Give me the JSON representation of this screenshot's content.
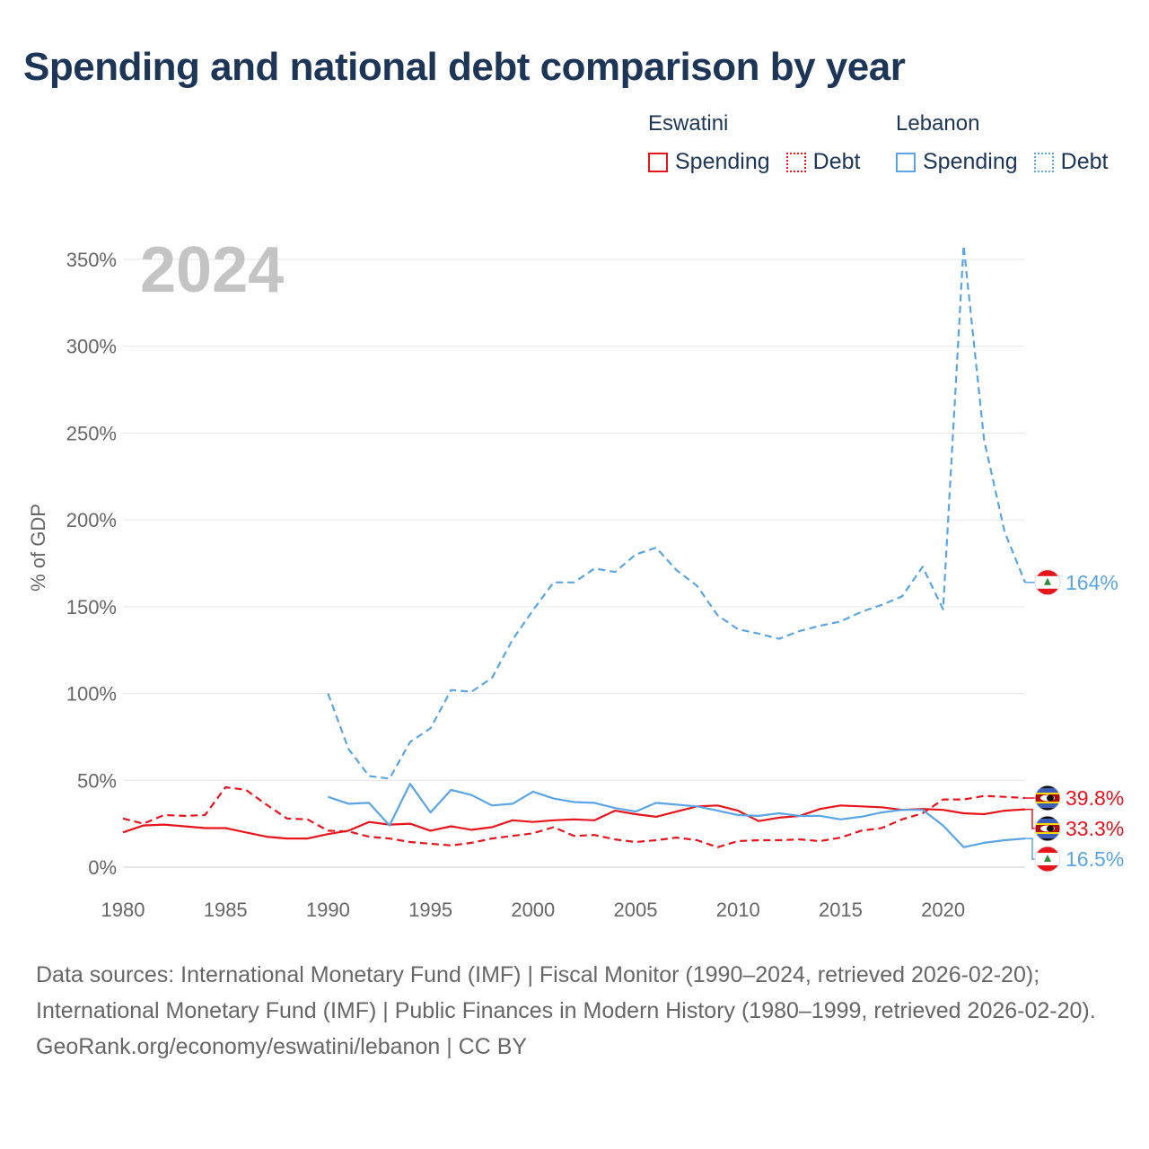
{
  "title": "Spending and national debt comparison by year",
  "legend": {
    "groups": [
      {
        "country": "Eswatini",
        "color": "#e8141c",
        "items": [
          {
            "label": "Spending",
            "style": "solid"
          },
          {
            "label": "Debt",
            "style": "dotted"
          }
        ]
      },
      {
        "country": "Lebanon",
        "color": "#5aa5e6",
        "items": [
          {
            "label": "Spending",
            "style": "solid"
          },
          {
            "label": "Debt",
            "style": "dotted"
          }
        ]
      }
    ]
  },
  "year_label": "2024",
  "footer": {
    "sources": "Data sources: International Monetary Fund (IMF) | Fiscal Monitor (1990–2024, retrieved 2026-02-20); International Monetary Fund (IMF) | Public Finances in Modern History (1980–1999, retrieved 2026-02-20).",
    "credit": "GeoRank.org/economy/eswatini/lebanon | CC BY"
  },
  "chart_data": {
    "type": "line",
    "title": "Spending and national debt comparison by year",
    "xlabel": "",
    "ylabel": "% of GDP",
    "xlim": [
      1980,
      2024
    ],
    "ylim": [
      0,
      350
    ],
    "x_ticks": [
      1980,
      1985,
      1990,
      1995,
      2000,
      2005,
      2010,
      2015,
      2020
    ],
    "x_tick_labels": [
      "1980",
      "1985",
      "1990",
      "1995",
      "2000",
      "2005",
      "2010",
      "2015",
      "2020"
    ],
    "y_ticks": [
      0,
      50,
      100,
      150,
      200,
      250,
      300,
      350
    ],
    "y_tick_labels": [
      "0%",
      "50%",
      "100%",
      "150%",
      "200%",
      "250%",
      "300%",
      "350%"
    ],
    "grid": true,
    "series": [
      {
        "name": "Eswatini Spending",
        "country": "Eswatini",
        "metric": "Spending",
        "color": "#e8141c",
        "dash": "solid",
        "start_year": 1980,
        "values": [
          20,
          24,
          24.5,
          23.5,
          22.5,
          22.5,
          20,
          17.5,
          16.5,
          16.5,
          19,
          21,
          26,
          24.5,
          25,
          21,
          23.5,
          21.5,
          23,
          27,
          26,
          27,
          27.5,
          27,
          32.5,
          30.5,
          29,
          32,
          35,
          35.5,
          32.5,
          26.5,
          28.5,
          29.5,
          33.5,
          35.5,
          35,
          34.5,
          33,
          33.5,
          33,
          31,
          30.5,
          32.5,
          33.3
        ],
        "end_label": "33.3%"
      },
      {
        "name": "Eswatini Debt",
        "country": "Eswatini",
        "metric": "Debt",
        "color": "#e8141c",
        "dash": "dashed",
        "start_year": 1980,
        "values": [
          28,
          25,
          30,
          29.5,
          30,
          46,
          44.5,
          36,
          28,
          27.5,
          21,
          20.5,
          17.5,
          16.5,
          14.5,
          13.5,
          12.5,
          14,
          16.5,
          18,
          19.5,
          23,
          18,
          18.5,
          16,
          14.5,
          15.5,
          17,
          15.5,
          11.5,
          15,
          15.5,
          15.5,
          16,
          15,
          17,
          21,
          22.5,
          27.5,
          31,
          39,
          39,
          41,
          40.5,
          39.8
        ],
        "end_label": "39.8%"
      },
      {
        "name": "Lebanon Spending",
        "country": "Lebanon",
        "metric": "Spending",
        "color": "#5aa5e6",
        "dash": "solid",
        "start_year": 1990,
        "values": [
          40.5,
          36.5,
          37,
          24,
          48,
          31.5,
          44.5,
          41.5,
          35.5,
          36.5,
          43.5,
          39.5,
          37.5,
          37,
          34,
          32,
          37,
          36,
          35,
          32.5,
          30,
          29.5,
          31,
          29.5,
          29.5,
          27.5,
          29,
          31.5,
          33,
          33,
          24,
          11.5,
          14,
          15.5,
          16.5
        ],
        "end_label": "16.5%"
      },
      {
        "name": "Lebanon Debt",
        "country": "Lebanon",
        "metric": "Debt",
        "color": "#5aa5e6",
        "dash": "dashed",
        "start_year": 1990,
        "values": [
          100,
          68,
          52.5,
          51,
          72,
          80,
          102,
          101,
          109,
          131,
          148,
          164,
          164,
          172,
          170,
          180,
          184,
          171,
          162,
          145,
          137,
          134.5,
          131.5,
          136,
          139,
          141.5,
          147,
          151,
          156,
          173,
          148.5,
          358,
          246,
          193,
          164
        ],
        "end_label": "164%"
      }
    ]
  }
}
